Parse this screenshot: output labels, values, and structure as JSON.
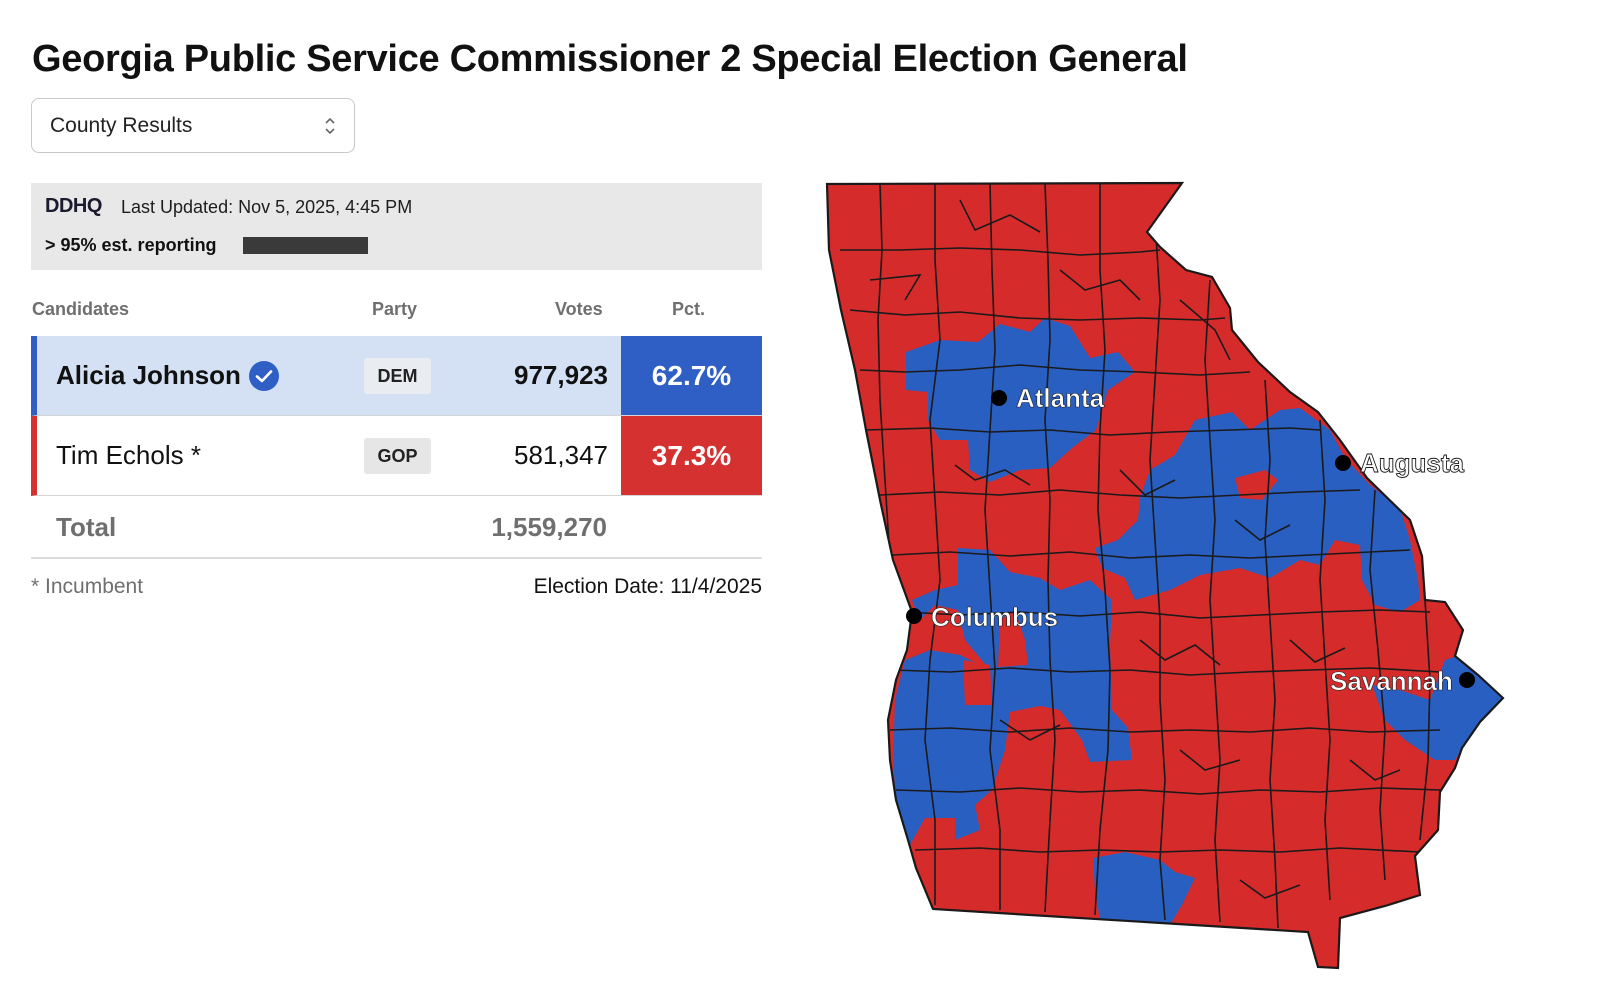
{
  "page": {
    "title": "Georgia Public Service Commissioner 2 Special Election General"
  },
  "view_select": {
    "selected": "County Results"
  },
  "info": {
    "logo_text": "DDHQ",
    "last_updated": "Last Updated: Nov 5, 2025, 4:45 PM",
    "reporting": "> 95% est. reporting",
    "reporting_fraction": 0.95
  },
  "table": {
    "headers": {
      "candidates": "Candidates",
      "party": "Party",
      "votes": "Votes",
      "pct": "Pct."
    },
    "rows": [
      {
        "name": "Alicia Johnson",
        "party": "DEM",
        "votes": "977,923",
        "pct": "62.7%",
        "winner": true,
        "color": "#2f5fc4"
      },
      {
        "name": "Tim Echols *",
        "party": "GOP",
        "votes": "581,347",
        "pct": "37.3%",
        "winner": false,
        "color": "#d63131"
      }
    ],
    "total_label": "Total",
    "total_votes": "1,559,270"
  },
  "footer": {
    "incumbent_note": "* Incumbent",
    "election_date": "Election Date: 11/4/2025"
  },
  "map": {
    "colors": {
      "dem": "#2a5fc2",
      "gop": "#d52b2b",
      "border": "#1a1a1a"
    },
    "cities": [
      {
        "name": "Atlanta"
      },
      {
        "name": "Augusta"
      },
      {
        "name": "Columbus"
      },
      {
        "name": "Savannah"
      }
    ]
  }
}
